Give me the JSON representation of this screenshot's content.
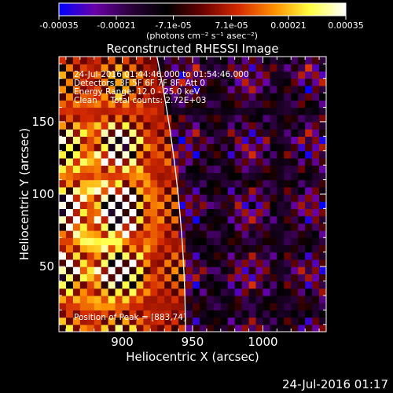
{
  "chart_data": {
    "type": "heatmap",
    "title": "Reconstructed RHESSI Image",
    "xlabel": "Heliocentric X (arcsec)",
    "ylabel": "Heliocentric Y (arcsec)",
    "xlim": [
      855,
      1045
    ],
    "ylim": [
      5,
      195
    ],
    "x_ticks": [
      900,
      950,
      1000
    ],
    "y_ticks": [
      50,
      100,
      150
    ],
    "colorbar": {
      "ticks": [
        -0.00035,
        -0.00021,
        -7.1e-05,
        7.1e-05,
        0.00021,
        0.00035
      ],
      "tick_labels": [
        "-0.00035",
        "-0.00021",
        "-7.1e-05",
        "7.1e-05",
        "0.00021",
        "0.00035"
      ],
      "label": "(photons cm⁻² s⁻¹ asec⁻²)",
      "range": [
        -0.00035,
        0.00035
      ],
      "colors": [
        "#0000ff",
        "#6a00a8",
        "#2a003a",
        "#000000",
        "#6a0000",
        "#d42a00",
        "#ff9000",
        "#ffff40",
        "#ffffff"
      ]
    },
    "annotations": [
      "24-Jul-2016 01:44:46.000 to 01:54:46.000",
      "Detectors: 3F 5F 6F 7F 8F, Att 0",
      "Energy Range: 12.0 - 25.0 keV",
      "Clean     Total counts: 2.72E+03"
    ],
    "peak_label": "Position of Peak = [883,74]",
    "peak": [
      883,
      74
    ],
    "limb": {
      "radius_arcsec": 945,
      "color": "#ffffff"
    },
    "emission": {
      "source_center": [
        885,
        85
      ],
      "source_width_arcsec": 30,
      "pattern_period_arcsec": 9,
      "background_level": -0.5
    }
  },
  "footer_date": "24-Jul-2016 01:17"
}
